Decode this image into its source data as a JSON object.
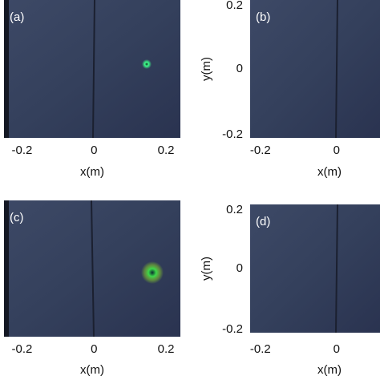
{
  "chart_data": [
    {
      "type": "image",
      "panel_label": "(a)",
      "xlabel": "x(m)",
      "xlim": [
        -0.25,
        0.24
      ],
      "xticks": [
        -0.2,
        0,
        0.2
      ]
    },
    {
      "type": "image",
      "panel_label": "(b)",
      "xlabel": "x(m)",
      "xlim": [
        -0.227,
        0.114
      ],
      "xticks": [
        -0.2,
        0
      ],
      "ylabel": "y(m)",
      "ylim": [
        -0.21,
        0.21
      ],
      "yticks": [
        -0.2,
        0,
        0.2
      ]
    },
    {
      "type": "image",
      "panel_label": "(c)",
      "xlabel": "x(m)",
      "xlim": [
        -0.25,
        0.24
      ],
      "xticks": [
        -0.2,
        0,
        0.2
      ]
    },
    {
      "type": "image",
      "panel_label": "(d)",
      "xlabel": "x(m)",
      "xlim": [
        -0.227,
        0.114
      ],
      "xticks": [
        -0.2,
        0
      ],
      "ylabel": "y(m)",
      "ylim": [
        -0.21,
        0.21
      ],
      "yticks": [
        -0.2,
        0,
        0.2
      ]
    }
  ]
}
